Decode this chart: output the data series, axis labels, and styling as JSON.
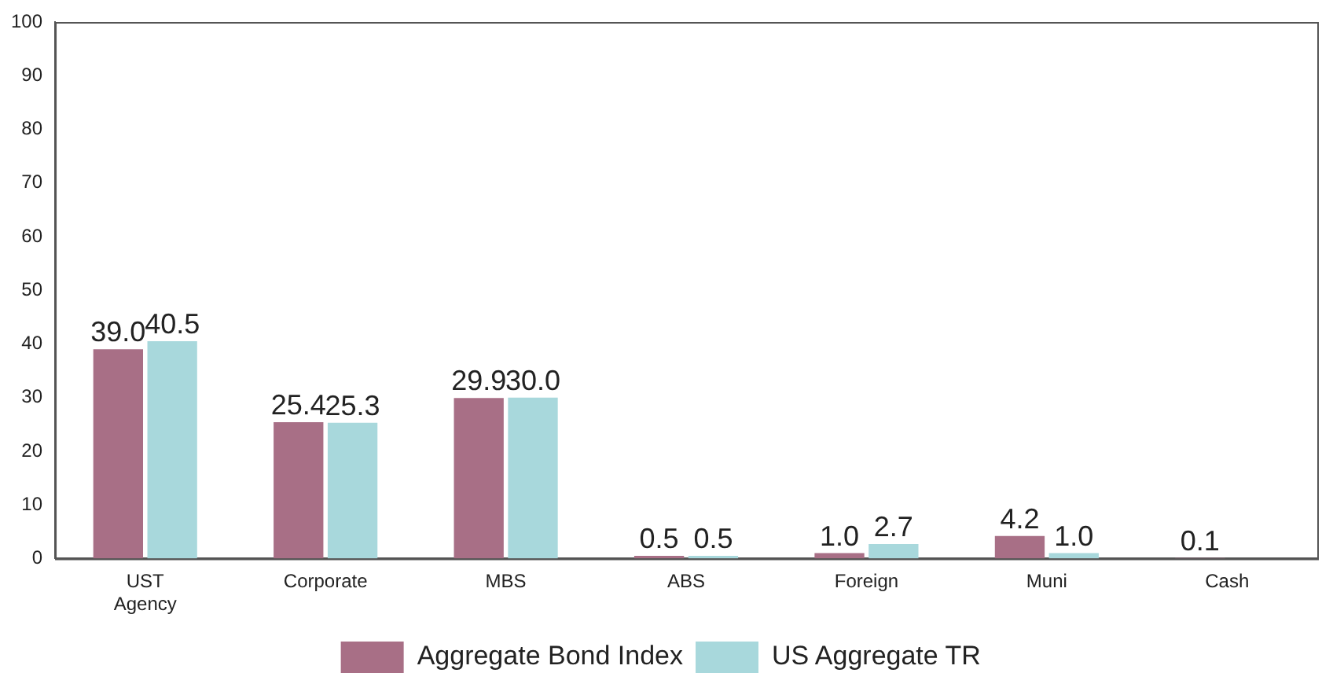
{
  "chart_data": {
    "type": "bar",
    "categories": [
      "UST Agency",
      "Corporate",
      "MBS",
      "ABS",
      "Foreign",
      "Muni",
      "Cash"
    ],
    "series": [
      {
        "name": "Aggregate Bond Index",
        "color": "#a86f86",
        "values": [
          39.0,
          25.4,
          29.9,
          0.5,
          1.0,
          4.2,
          0.1
        ],
        "value_labels": [
          "39.0",
          "25.4",
          "29.9",
          "0.5",
          "1.0",
          "4.2",
          "0.1"
        ]
      },
      {
        "name": "US Aggregate TR",
        "color": "#a8d8dc",
        "values": [
          40.5,
          25.3,
          30.0,
          0.5,
          2.7,
          1.0,
          null
        ],
        "value_labels": [
          "40.5",
          "25.3",
          "30.0",
          "0.5",
          "2.7",
          "1.0",
          null
        ]
      }
    ],
    "ylim": [
      0,
      100
    ],
    "yticks": [
      0,
      10,
      20,
      30,
      40,
      50,
      60,
      70,
      80,
      90,
      100
    ],
    "grid": false,
    "legend": "bottom"
  }
}
